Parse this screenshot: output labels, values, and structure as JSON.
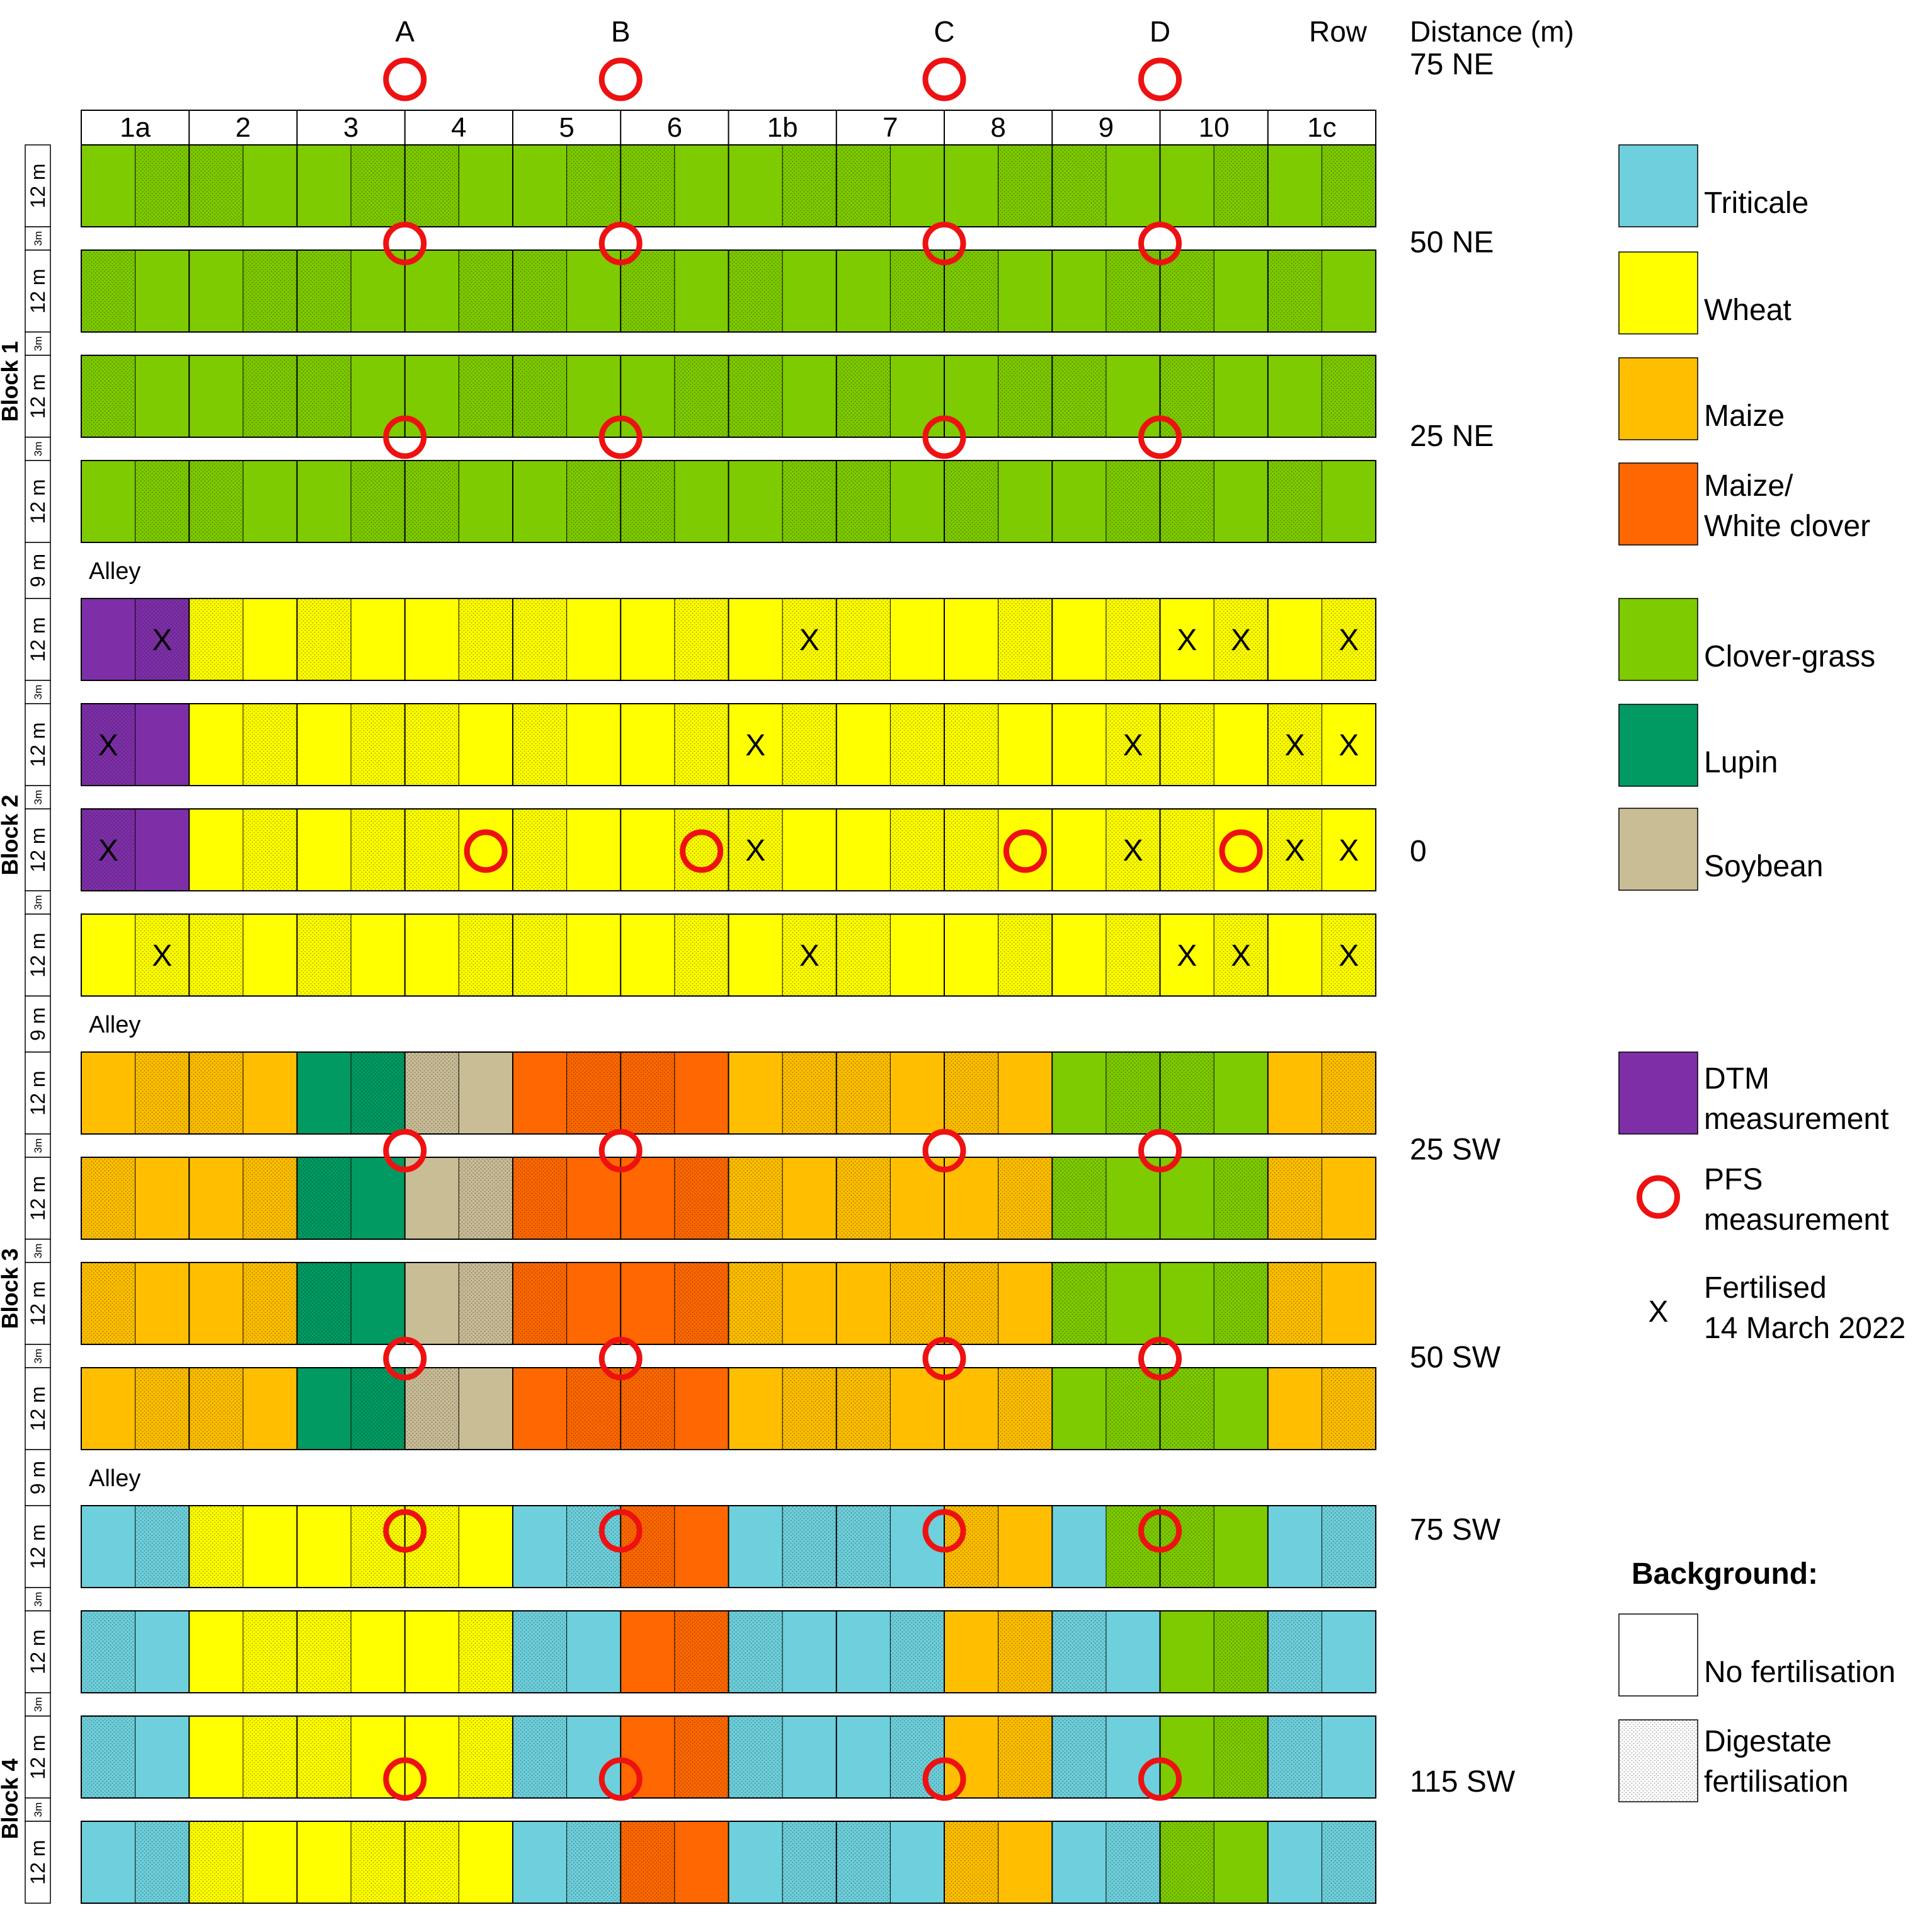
{
  "columns": [
    "1a",
    "2",
    "3",
    "4",
    "5",
    "6",
    "1b",
    "7",
    "8",
    "9",
    "10",
    "1c"
  ],
  "header": {
    "row_label": "Row",
    "distance_label": "Distance (m)"
  },
  "transects": [
    "A",
    "B",
    "C",
    "D"
  ],
  "distances": [
    "75 NE",
    "50 NE",
    "25 NE",
    "0",
    "25 SW",
    "50 SW",
    "75 SW",
    "115 SW"
  ],
  "alley_label": "Alley",
  "side_labels": {
    "plot": "12 m",
    "gap": "3m",
    "alley": "9 m"
  },
  "blocks": [
    "Block 1",
    "Block 2",
    "Block 3",
    "Block 4"
  ],
  "fertilised_mark": "X",
  "colors": {
    "C": "#7DCB00",
    "W": "#FFFF00",
    "M": "#FFBF00",
    "O": "#FF6800",
    "L": "#009A62",
    "S": "#C9BD96",
    "T": "#6DD0DC",
    "P": "#7E2FA8",
    "pfs": "#EE1111"
  },
  "crops_key": {
    "C": "Clover-grass",
    "W": "Wheat",
    "M": "Maize",
    "O": "Maize/White clover",
    "L": "Lupin",
    "S": "Soybean",
    "T": "Triticale",
    "P": "DTM measurement"
  },
  "plot_rows": [
    {
      "block": 1,
      "crops": [
        "CC",
        "CC",
        "CC",
        "CC",
        "CC",
        "CC",
        "CC",
        "CC",
        "CC",
        "CC",
        "CC",
        "CC"
      ],
      "dig": [
        0,
        1,
        1,
        0,
        0,
        1,
        1,
        0,
        0,
        1,
        1,
        0,
        0,
        1,
        1,
        0,
        0,
        1,
        1,
        0,
        0,
        1,
        0,
        1
      ],
      "x": []
    },
    {
      "block": 1,
      "crops": [
        "CC",
        "CC",
        "CC",
        "CC",
        "CC",
        "CC",
        "CC",
        "CC",
        "CC",
        "CC",
        "CC",
        "CC"
      ],
      "dig": [
        1,
        0,
        0,
        1,
        1,
        0,
        0,
        1,
        1,
        0,
        1,
        0,
        1,
        0,
        0,
        1,
        1,
        0,
        0,
        1,
        1,
        0,
        1,
        0
      ],
      "x": []
    },
    {
      "block": 1,
      "crops": [
        "CC",
        "CC",
        "CC",
        "CC",
        "CC",
        "CC",
        "CC",
        "CC",
        "CC",
        "CC",
        "CC",
        "CC"
      ],
      "dig": [
        1,
        0,
        0,
        1,
        1,
        0,
        0,
        1,
        1,
        0,
        0,
        1,
        1,
        0,
        1,
        0,
        0,
        1,
        1,
        0,
        1,
        0,
        0,
        1
      ],
      "x": []
    },
    {
      "block": 1,
      "crops": [
        "CC",
        "CC",
        "CC",
        "CC",
        "CC",
        "CC",
        "CC",
        "CC",
        "CC",
        "CC",
        "CC",
        "CC"
      ],
      "dig": [
        0,
        1,
        1,
        0,
        0,
        1,
        1,
        0,
        0,
        1,
        1,
        0,
        0,
        1,
        1,
        0,
        1,
        0,
        0,
        1,
        1,
        0,
        1,
        0
      ],
      "x": []
    },
    {
      "block": 2,
      "crops": [
        "PP",
        "WW",
        "WW",
        "WW",
        "WW",
        "WW",
        "WW",
        "WW",
        "WW",
        "WW",
        "WW",
        "WW"
      ],
      "dig": [
        0,
        1,
        1,
        0,
        1,
        0,
        0,
        1,
        1,
        0,
        0,
        1,
        0,
        1,
        1,
        0,
        0,
        1,
        0,
        1,
        0,
        1,
        0,
        1
      ],
      "x": [
        1,
        13,
        20,
        21,
        23
      ]
    },
    {
      "block": 2,
      "crops": [
        "PP",
        "WW",
        "WW",
        "WW",
        "WW",
        "WW",
        "WW",
        "WW",
        "WW",
        "WW",
        "WW",
        "WW"
      ],
      "dig": [
        1,
        0,
        0,
        1,
        0,
        1,
        1,
        0,
        1,
        0,
        0,
        1,
        0,
        1,
        0,
        1,
        1,
        0,
        0,
        1,
        1,
        0,
        1,
        0
      ],
      "x": [
        0,
        12,
        19,
        22,
        23
      ]
    },
    {
      "block": 2,
      "crops": [
        "PP",
        "WW",
        "WW",
        "WW",
        "WW",
        "WW",
        "WW",
        "WW",
        "WW",
        "WW",
        "WW",
        "WW"
      ],
      "dig": [
        1,
        0,
        0,
        1,
        0,
        1,
        1,
        0,
        1,
        0,
        0,
        1,
        1,
        0,
        0,
        1,
        1,
        0,
        0,
        1,
        1,
        0,
        1,
        0
      ],
      "x": [
        0,
        12,
        19,
        22,
        23
      ]
    },
    {
      "block": 2,
      "crops": [
        "WW",
        "WW",
        "WW",
        "WW",
        "WW",
        "WW",
        "WW",
        "WW",
        "WW",
        "WW",
        "WW",
        "WW"
      ],
      "dig": [
        0,
        1,
        1,
        0,
        1,
        0,
        0,
        1,
        1,
        0,
        0,
        1,
        0,
        1,
        1,
        0,
        0,
        1,
        0,
        1,
        0,
        1,
        0,
        1
      ],
      "x": [
        1,
        13,
        20,
        21,
        23
      ]
    },
    {
      "block": 3,
      "crops": [
        "MM",
        "MM",
        "LL",
        "SS",
        "OO",
        "OO",
        "MM",
        "MM",
        "MM",
        "CC",
        "CC",
        "MM"
      ],
      "dig": [
        0,
        1,
        1,
        0,
        0,
        1,
        1,
        0,
        0,
        1,
        1,
        0,
        0,
        1,
        1,
        0,
        1,
        0,
        0,
        1,
        1,
        0,
        0,
        1
      ],
      "x": []
    },
    {
      "block": 3,
      "crops": [
        "MM",
        "MM",
        "LL",
        "SS",
        "OO",
        "OO",
        "MM",
        "MM",
        "MM",
        "CC",
        "CC",
        "MM"
      ],
      "dig": [
        1,
        0,
        0,
        1,
        1,
        0,
        0,
        1,
        1,
        0,
        0,
        1,
        1,
        0,
        1,
        0,
        0,
        1,
        1,
        0,
        0,
        1,
        1,
        0
      ],
      "x": []
    },
    {
      "block": 3,
      "crops": [
        "MM",
        "MM",
        "LL",
        "SS",
        "OO",
        "OO",
        "MM",
        "MM",
        "MM",
        "CC",
        "CC",
        "MM"
      ],
      "dig": [
        1,
        0,
        0,
        1,
        1,
        0,
        0,
        1,
        1,
        0,
        0,
        1,
        1,
        0,
        0,
        1,
        1,
        0,
        1,
        0,
        0,
        1,
        1,
        0
      ],
      "x": []
    },
    {
      "block": 3,
      "crops": [
        "MM",
        "MM",
        "LL",
        "SS",
        "OO",
        "OO",
        "MM",
        "MM",
        "MM",
        "CC",
        "CC",
        "MM"
      ],
      "dig": [
        0,
        1,
        1,
        0,
        0,
        1,
        1,
        0,
        0,
        1,
        1,
        0,
        0,
        1,
        1,
        0,
        0,
        1,
        0,
        1,
        1,
        0,
        0,
        1
      ],
      "x": []
    },
    {
      "block": 4,
      "crops": [
        "TT",
        "WW",
        "WW",
        "WW",
        "TT",
        "OO",
        "TT",
        "TT",
        "MM",
        "TC",
        "CC",
        "TT"
      ],
      "dig": [
        0,
        1,
        1,
        0,
        0,
        1,
        1,
        0,
        0,
        1,
        1,
        0,
        0,
        1,
        1,
        0,
        1,
        0,
        0,
        1,
        1,
        0,
        0,
        1
      ],
      "x": []
    },
    {
      "block": 4,
      "crops": [
        "TT",
        "WW",
        "WW",
        "WW",
        "TT",
        "OO",
        "TT",
        "TT",
        "MM",
        "TT",
        "CC",
        "TT"
      ],
      "dig": [
        1,
        0,
        0,
        1,
        1,
        0,
        0,
        1,
        1,
        0,
        0,
        1,
        1,
        0,
        0,
        1,
        0,
        1,
        1,
        0,
        0,
        1,
        1,
        0
      ],
      "x": []
    },
    {
      "block": 4,
      "crops": [
        "TT",
        "WW",
        "WW",
        "WW",
        "TT",
        "OO",
        "TT",
        "TT",
        "MM",
        "TT",
        "CC",
        "TT"
      ],
      "dig": [
        1,
        0,
        0,
        1,
        1,
        0,
        0,
        1,
        1,
        0,
        0,
        1,
        1,
        0,
        0,
        1,
        0,
        1,
        1,
        0,
        0,
        1,
        1,
        0
      ],
      "x": []
    },
    {
      "block": 4,
      "crops": [
        "TT",
        "WW",
        "WW",
        "WW",
        "TT",
        "OO",
        "TT",
        "TT",
        "MM",
        "TT",
        "CC",
        "TT"
      ],
      "dig": [
        0,
        1,
        1,
        0,
        0,
        1,
        1,
        0,
        0,
        1,
        1,
        0,
        0,
        1,
        1,
        0,
        1,
        0,
        0,
        1,
        1,
        0,
        0,
        1
      ],
      "x": []
    }
  ],
  "extra_pfs_row": 6,
  "legend": {
    "crops": [
      {
        "key": "T",
        "lines": [
          "Triticale"
        ]
      },
      {
        "key": "W",
        "lines": [
          "Wheat"
        ]
      },
      {
        "key": "M",
        "lines": [
          "Maize"
        ]
      },
      {
        "key": "O",
        "lines": [
          "Maize/",
          "White clover"
        ]
      },
      {
        "key": "C",
        "lines": [
          "Clover-grass"
        ]
      },
      {
        "key": "L",
        "lines": [
          "Lupin"
        ]
      },
      {
        "key": "S",
        "lines": [
          "Soybean"
        ]
      }
    ],
    "dtm": {
      "key": "P",
      "lines": [
        "DTM",
        "measurement"
      ]
    },
    "pfs": {
      "lines": [
        "PFS",
        "measurement"
      ]
    },
    "fert": {
      "mark": "X",
      "lines": [
        "Fertilised",
        "14 March 2022"
      ]
    },
    "background_title": "Background:",
    "bg": [
      {
        "type": "none",
        "lines": [
          "No fertilisation"
        ]
      },
      {
        "type": "dig",
        "lines": [
          "Digestate",
          "fertilisation"
        ]
      }
    ]
  }
}
